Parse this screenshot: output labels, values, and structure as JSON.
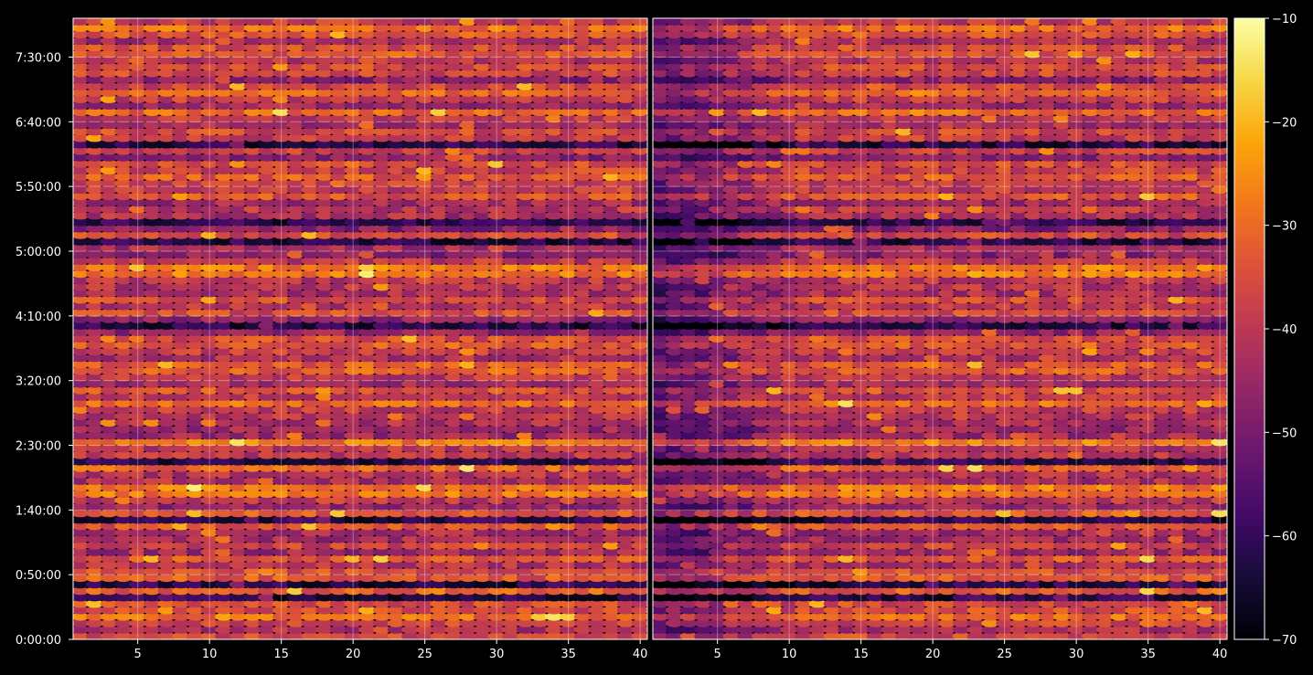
{
  "chart_data": {
    "type": "heatmap",
    "title": "",
    "colormap": "inferno",
    "colorbar": {
      "range": [
        -70,
        -10
      ],
      "ticks": [
        "−10",
        "−20",
        "−30",
        "−40",
        "−50",
        "−60",
        "−70"
      ]
    },
    "grid": true,
    "panels": [
      {
        "name": "",
        "x_range": [
          1,
          40
        ],
        "x_tick_values": [
          5,
          10,
          15,
          20,
          25,
          30,
          35,
          40
        ],
        "x_tick_labels": [
          "5",
          "10",
          "15",
          "20",
          "25",
          "30",
          "35",
          "40"
        ]
      },
      {
        "name": "",
        "x_range": [
          1,
          40
        ],
        "x_tick_values": [
          5,
          10,
          15,
          20,
          25,
          30,
          35,
          40
        ],
        "x_tick_labels": [
          "5",
          "10",
          "15",
          "20",
          "25",
          "30",
          "35",
          "40"
        ]
      }
    ],
    "y_range_seconds": [
      0,
      28800
    ],
    "y_tick_values_seconds": [
      0,
      3000,
      6000,
      9000,
      12000,
      15000,
      18000,
      21000,
      24000,
      27000
    ],
    "y_tick_labels": [
      "0:00:00",
      "0:50:00",
      "1:40:00",
      "2:30:00",
      "3:20:00",
      "4:10:00",
      "5:00:00",
      "5:50:00",
      "6:40:00",
      "7:30:00"
    ],
    "rows": 96,
    "columns": 40,
    "value_description": "Matrix of levels (dB) per channel over time; values range approximately from -70 to -10, typical -30 to -50."
  }
}
